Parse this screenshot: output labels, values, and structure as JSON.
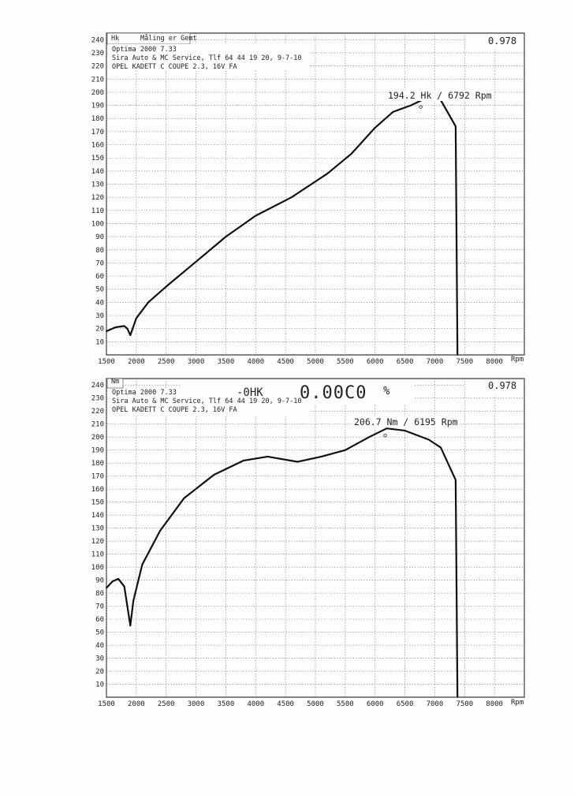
{
  "charts": [
    {
      "unit_label": "Hk",
      "status": "Måling er Gemt",
      "factor": "0.978",
      "header": [
        "Optima 2000 7.33",
        "Sira Auto & MC Service, Tlf 64 44 19 20, 9-7-10",
        "OPEL KADETT C COUPE 2.3, 16V FA"
      ],
      "peak_label": "194.2 Hk / 6792 Rpm",
      "x_unit": "Rpm"
    },
    {
      "unit_label": "Nm",
      "factor": "0.978",
      "header": [
        "Optima 2000 7.33",
        "Sira Auto & MC Service, Tlf 64 44 19 20, 9-7-10",
        "OPEL KADETT C COUPE 2.3, 16V FA"
      ],
      "peak_label": "206.7 Nm / 6195 Rpm",
      "x_unit": "Rpm",
      "stamp": {
        "a": "-0HK",
        "b": "0.00C0",
        "c": "%"
      }
    }
  ],
  "chart_data": [
    {
      "type": "line",
      "title": "",
      "xlabel": "Rpm",
      "ylabel": "Hk",
      "xlim": [
        1500,
        8500
      ],
      "ylim": [
        0,
        245
      ],
      "x_ticks": [
        1500,
        2000,
        2500,
        3000,
        3500,
        4000,
        4500,
        5000,
        5500,
        6000,
        6500,
        7000,
        7500,
        8000
      ],
      "y_ticks": [
        10,
        20,
        30,
        40,
        50,
        60,
        70,
        80,
        90,
        100,
        110,
        120,
        130,
        140,
        150,
        160,
        170,
        180,
        190,
        200,
        210,
        220,
        230,
        240
      ],
      "grid": true,
      "series": [
        {
          "x": [
            1500,
            1650,
            1800,
            1850,
            1900,
            2000,
            2200,
            2500,
            3000,
            3500,
            4000,
            4600,
            5200,
            5600,
            6000,
            6300,
            6600,
            6792,
            7100,
            7350,
            7380
          ],
          "y": [
            18,
            21,
            22,
            20,
            15,
            28,
            40,
            52,
            71,
            90,
            106,
            120,
            138,
            153,
            173,
            185,
            190,
            194.2,
            194,
            174,
            0
          ]
        }
      ],
      "annotations": [
        "194.2 Hk / 6792 Rpm"
      ]
    },
    {
      "type": "line",
      "title": "",
      "xlabel": "Rpm",
      "ylabel": "Nm",
      "xlim": [
        1500,
        8500
      ],
      "ylim": [
        0,
        245
      ],
      "x_ticks": [
        1500,
        2000,
        2500,
        3000,
        3500,
        4000,
        4500,
        5000,
        5500,
        6000,
        6500,
        7000,
        7500,
        8000
      ],
      "y_ticks": [
        10,
        20,
        30,
        40,
        50,
        60,
        70,
        80,
        90,
        100,
        110,
        120,
        130,
        140,
        150,
        160,
        170,
        180,
        190,
        200,
        210,
        220,
        230,
        240
      ],
      "grid": true,
      "series": [
        {
          "x": [
            1500,
            1600,
            1700,
            1800,
            1900,
            1950,
            2100,
            2400,
            2800,
            3300,
            3800,
            4200,
            4700,
            5100,
            5500,
            5900,
            6195,
            6500,
            6900,
            7100,
            7350,
            7380
          ],
          "y": [
            84,
            89,
            91,
            85,
            55,
            74,
            102,
            128,
            153,
            171,
            182,
            185,
            181,
            185,
            190,
            200,
            206.7,
            205,
            198,
            192,
            167,
            0
          ]
        }
      ],
      "annotations": [
        "206.7 Nm / 6195 Rpm"
      ]
    }
  ]
}
